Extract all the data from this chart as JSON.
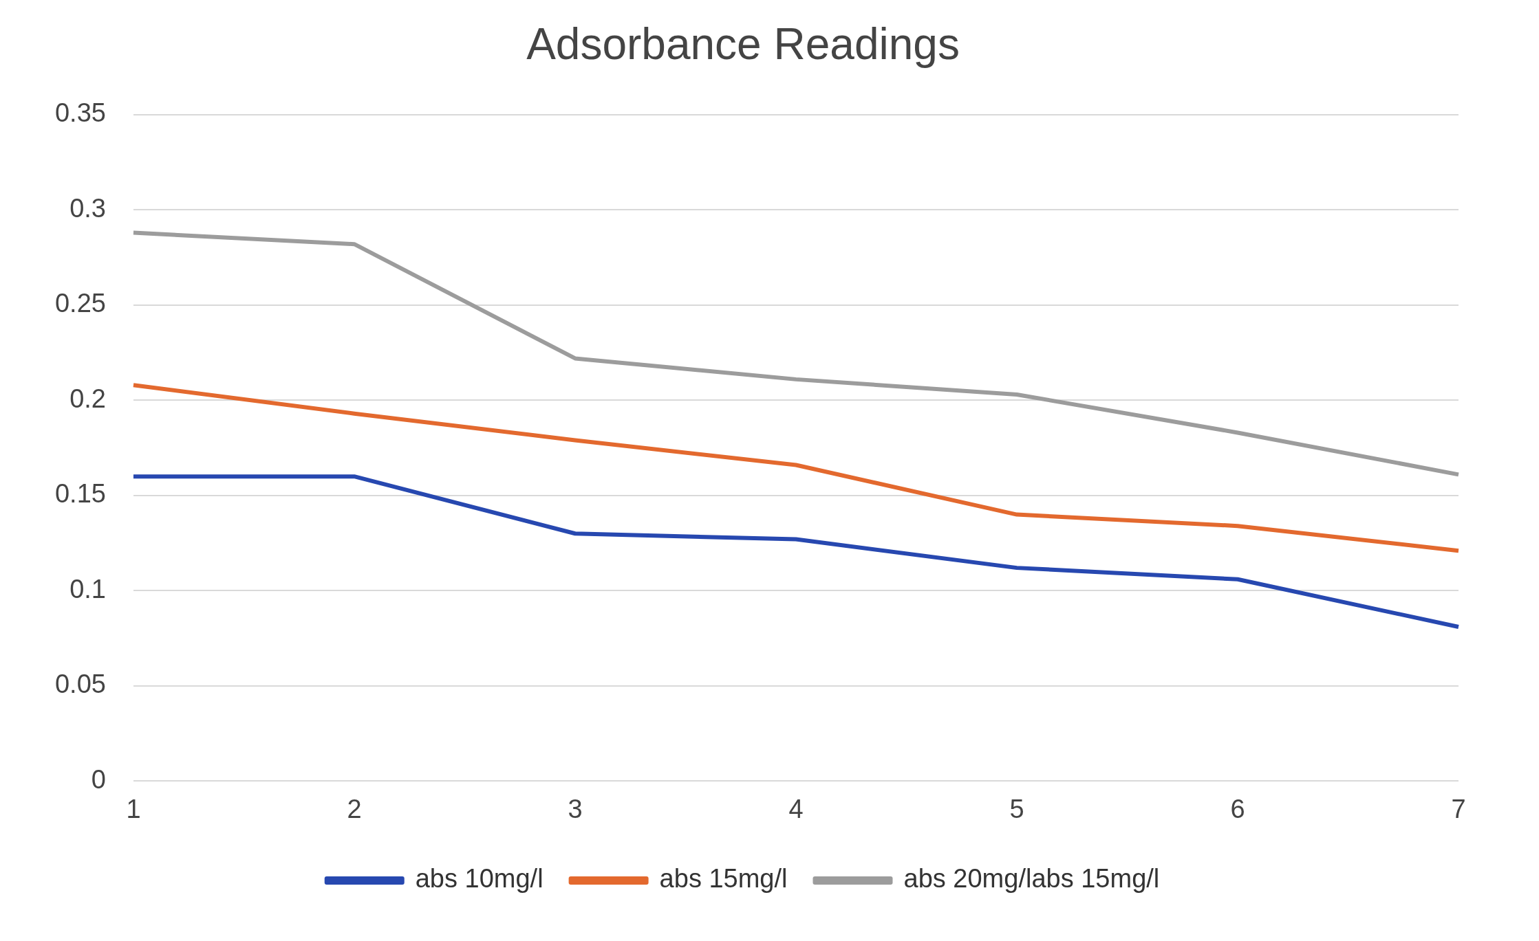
{
  "chart_data": {
    "type": "line",
    "title": "Adsorbance Readings",
    "categories": [
      "1",
      "2",
      "3",
      "4",
      "5",
      "6",
      "7"
    ],
    "series": [
      {
        "name": "abs 10mg/l",
        "color": "#2748b0",
        "values": [
          0.16,
          0.16,
          0.13,
          0.127,
          0.112,
          0.106,
          0.081
        ]
      },
      {
        "name": "abs 15mg/l",
        "color": "#e3692e",
        "values": [
          0.208,
          0.193,
          0.179,
          0.166,
          0.14,
          0.134,
          0.121
        ]
      },
      {
        "name": "abs 20mg/labs 15mg/l",
        "color": "#9c9c9c",
        "values": [
          0.288,
          0.282,
          0.222,
          0.211,
          0.203,
          0.183,
          0.161
        ]
      }
    ],
    "ylim": [
      0,
      0.35
    ],
    "yticks": [
      0,
      0.05,
      0.1,
      0.15,
      0.2,
      0.25,
      0.3,
      0.35
    ],
    "grid": "y",
    "legend": "bottom",
    "marker": "none",
    "line_style": "solid"
  }
}
